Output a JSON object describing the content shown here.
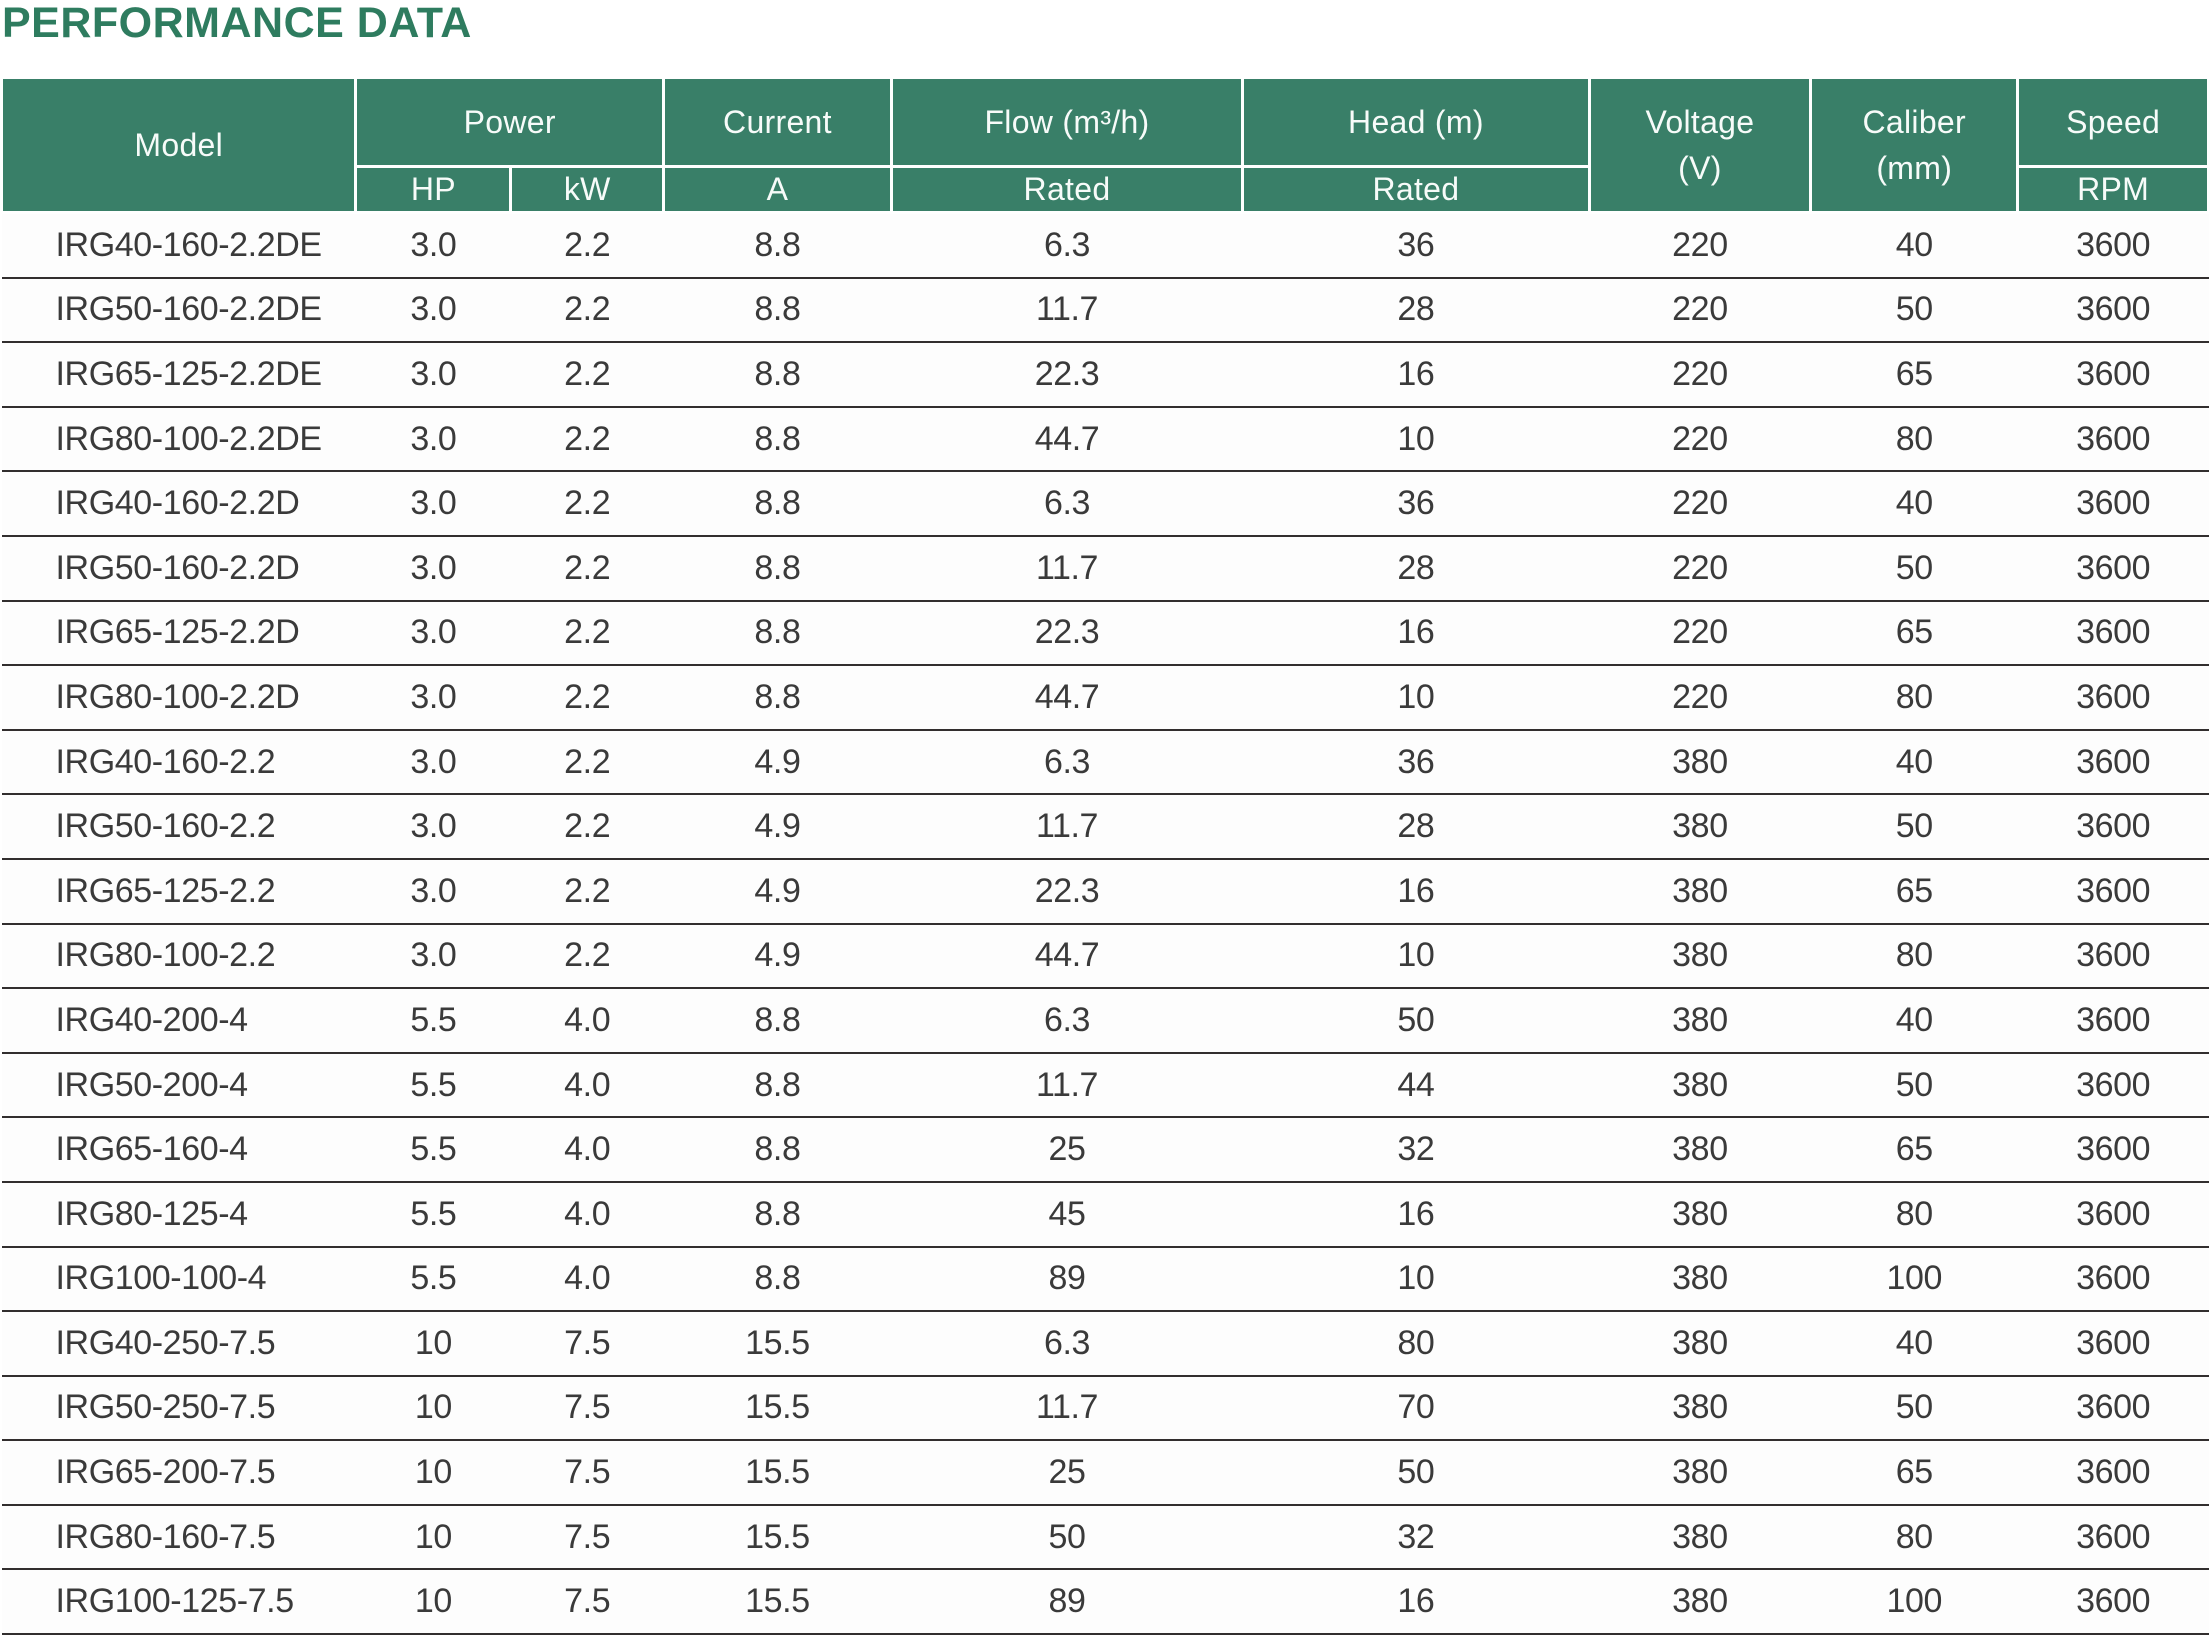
{
  "title": "PERFORMANCE DATA",
  "colors": {
    "title_green": "#2e7c5f",
    "header_green": "#397f68",
    "row_line": "#322e2e",
    "data_text": "#3a3a3a"
  },
  "table": {
    "header": {
      "model": "Model",
      "power": "Power",
      "power_hp": "HP",
      "power_kw": "kW",
      "current": "Current",
      "current_a": "A",
      "flow": "Flow (m³/h)",
      "flow_rated": "Rated",
      "head": "Head (m)",
      "head_rated": "Rated",
      "voltage_line1": "Voltage",
      "voltage_line2": "(V)",
      "caliber_line1": "Caliber",
      "caliber_line2": "(mm)",
      "speed": "Speed",
      "speed_rpm": "RPM"
    },
    "columns": [
      "model",
      "hp",
      "kw",
      "current-a",
      "flow-rated",
      "head-rated",
      "voltage",
      "caliber",
      "speed-rpm"
    ],
    "rows": [
      [
        "IRG40-160-2.2DE",
        "3.0",
        "2.2",
        "8.8",
        "6.3",
        "36",
        "220",
        "40",
        "3600"
      ],
      [
        "IRG50-160-2.2DE",
        "3.0",
        "2.2",
        "8.8",
        "11.7",
        "28",
        "220",
        "50",
        "3600"
      ],
      [
        "IRG65-125-2.2DE",
        "3.0",
        "2.2",
        "8.8",
        "22.3",
        "16",
        "220",
        "65",
        "3600"
      ],
      [
        "IRG80-100-2.2DE",
        "3.0",
        "2.2",
        "8.8",
        "44.7",
        "10",
        "220",
        "80",
        "3600"
      ],
      [
        "IRG40-160-2.2D",
        "3.0",
        "2.2",
        "8.8",
        "6.3",
        "36",
        "220",
        "40",
        "3600"
      ],
      [
        "IRG50-160-2.2D",
        "3.0",
        "2.2",
        "8.8",
        "11.7",
        "28",
        "220",
        "50",
        "3600"
      ],
      [
        "IRG65-125-2.2D",
        "3.0",
        "2.2",
        "8.8",
        "22.3",
        "16",
        "220",
        "65",
        "3600"
      ],
      [
        "IRG80-100-2.2D",
        "3.0",
        "2.2",
        "8.8",
        "44.7",
        "10",
        "220",
        "80",
        "3600"
      ],
      [
        "IRG40-160-2.2",
        "3.0",
        "2.2",
        "4.9",
        "6.3",
        "36",
        "380",
        "40",
        "3600"
      ],
      [
        "IRG50-160-2.2",
        "3.0",
        "2.2",
        "4.9",
        "11.7",
        "28",
        "380",
        "50",
        "3600"
      ],
      [
        "IRG65-125-2.2",
        "3.0",
        "2.2",
        "4.9",
        "22.3",
        "16",
        "380",
        "65",
        "3600"
      ],
      [
        "IRG80-100-2.2",
        "3.0",
        "2.2",
        "4.9",
        "44.7",
        "10",
        "380",
        "80",
        "3600"
      ],
      [
        "IRG40-200-4",
        "5.5",
        "4.0",
        "8.8",
        "6.3",
        "50",
        "380",
        "40",
        "3600"
      ],
      [
        "IRG50-200-4",
        "5.5",
        "4.0",
        "8.8",
        "11.7",
        "44",
        "380",
        "50",
        "3600"
      ],
      [
        "IRG65-160-4",
        "5.5",
        "4.0",
        "8.8",
        "25",
        "32",
        "380",
        "65",
        "3600"
      ],
      [
        "IRG80-125-4",
        "5.5",
        "4.0",
        "8.8",
        "45",
        "16",
        "380",
        "80",
        "3600"
      ],
      [
        "IRG100-100-4",
        "5.5",
        "4.0",
        "8.8",
        "89",
        "10",
        "380",
        "100",
        "3600"
      ],
      [
        "IRG40-250-7.5",
        "10",
        "7.5",
        "15.5",
        "6.3",
        "80",
        "380",
        "40",
        "3600"
      ],
      [
        "IRG50-250-7.5",
        "10",
        "7.5",
        "15.5",
        "11.7",
        "70",
        "380",
        "50",
        "3600"
      ],
      [
        "IRG65-200-7.5",
        "10",
        "7.5",
        "15.5",
        "25",
        "50",
        "380",
        "65",
        "3600"
      ],
      [
        "IRG80-160-7.5",
        "10",
        "7.5",
        "15.5",
        "50",
        "32",
        "380",
        "80",
        "3600"
      ],
      [
        "IRG100-125-7.5",
        "10",
        "7.5",
        "15.5",
        "89",
        "16",
        "380",
        "100",
        "3600"
      ]
    ]
  }
}
